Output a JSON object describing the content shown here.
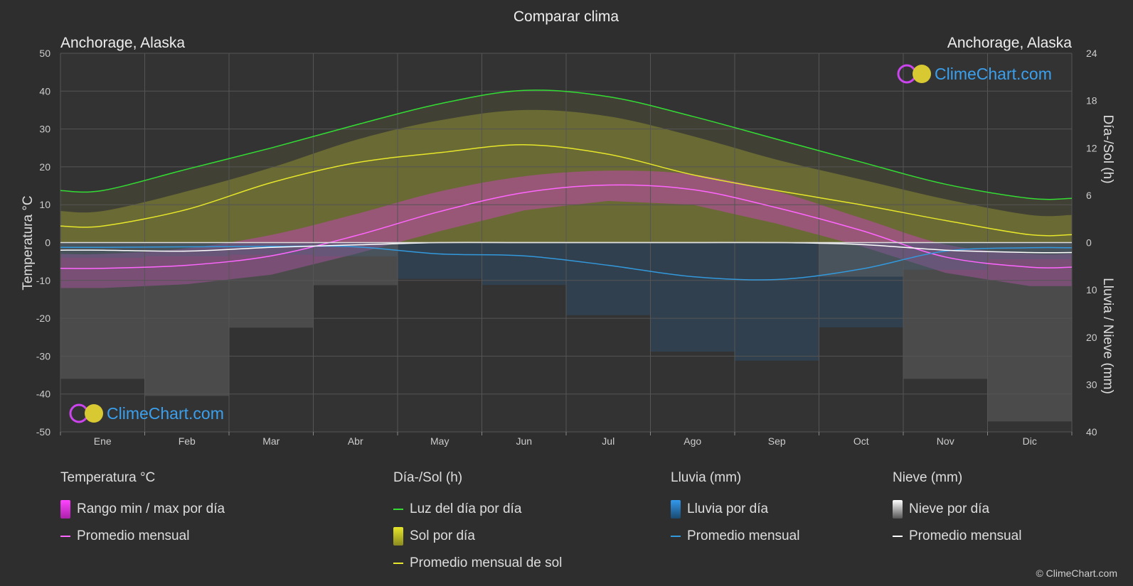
{
  "chart_data": {
    "type": "line",
    "title": "Comparar clima",
    "location_left": "Anchorage, Alaska",
    "location_right": "Anchorage, Alaska",
    "ylabel_left": "Temperatura °C",
    "ylabel_right_top": "Día-/Sol (h)",
    "ylabel_right_bottom": "Lluvia / Nieve (mm)",
    "y_left_ticks": [
      "50",
      "40",
      "30",
      "20",
      "10",
      "0",
      "-10",
      "-20",
      "-30",
      "-40",
      "-50"
    ],
    "y_right_top_ticks": [
      "24",
      "18",
      "12",
      "6",
      "0"
    ],
    "y_right_bottom_ticks": [
      "10",
      "20",
      "30",
      "40"
    ],
    "ylim_left": [
      -50,
      50
    ],
    "ylim_right_top_h": [
      0,
      24
    ],
    "ylim_right_bottom_mm": [
      0,
      40
    ],
    "grid": true,
    "categories": [
      "Ene",
      "Feb",
      "Mar",
      "Abr",
      "May",
      "Jun",
      "Jul",
      "Ago",
      "Sep",
      "Oct",
      "Nov",
      "Dic"
    ],
    "series": [
      {
        "name": "Luz del día por día",
        "unit": "h",
        "color": "#33dd33",
        "values": [
          6.6,
          9.3,
          12.0,
          14.9,
          17.6,
          19.3,
          18.5,
          16.0,
          13.1,
          10.2,
          7.4,
          5.6
        ]
      },
      {
        "name": "Sol por día",
        "unit": "h",
        "color": "#c8c832",
        "values": [
          4.0,
          6.5,
          9.5,
          13.0,
          15.5,
          16.8,
          16.0,
          13.5,
          10.5,
          8.0,
          5.5,
          3.5
        ]
      },
      {
        "name": "Promedio mensual de sol",
        "unit": "h",
        "color": "#e6e62a",
        "values": [
          2.1,
          4.2,
          7.6,
          10.1,
          11.4,
          12.4,
          11.2,
          8.6,
          6.6,
          4.8,
          2.8,
          1.0
        ]
      },
      {
        "name": "Temperatura promedio mensual",
        "unit": "°C",
        "color": "#ff66ff",
        "values": [
          -6.8,
          -6.0,
          -3.5,
          1.8,
          8.2,
          13.2,
          15.2,
          14.0,
          9.2,
          3.2,
          -3.8,
          -6.5
        ]
      },
      {
        "name": "Rango máx por día",
        "unit": "°C",
        "values": [
          -3.0,
          -1.5,
          2.0,
          7.5,
          13.5,
          17.5,
          19.0,
          18.0,
          13.5,
          6.5,
          -0.5,
          -3.0
        ]
      },
      {
        "name": "Rango min por día",
        "unit": "°C",
        "values": [
          -12.0,
          -11.0,
          -8.5,
          -3.0,
          3.0,
          8.5,
          11.0,
          10.0,
          5.0,
          -1.0,
          -8.0,
          -11.5
        ]
      },
      {
        "name": "Lluvia promedio mensual",
        "unit": "mm",
        "color": "#3399dd",
        "values": [
          1.0,
          0.9,
          0.8,
          0.9,
          2.4,
          2.8,
          4.8,
          7.2,
          7.8,
          5.6,
          1.8,
          1.1
        ]
      },
      {
        "name": "Nieve promedio mensual",
        "unit": "mm",
        "color": "#ffffff",
        "values": [
          1.6,
          1.8,
          1.0,
          0.5,
          0.0,
          0.0,
          0.0,
          0.0,
          0.0,
          0.4,
          1.6,
          2.1
        ]
      }
    ]
  },
  "legend": {
    "temp": {
      "title": "Temperatura °C",
      "range_label": "Rango min / max por día",
      "avg_label": "Promedio mensual"
    },
    "sun": {
      "title": "Día-/Sol (h)",
      "daylight_label": "Luz del día por día",
      "sun_label": "Sol por día",
      "sun_avg_label": "Promedio mensual de sol"
    },
    "rain": {
      "title": "Lluvia (mm)",
      "day_label": "Lluvia por día",
      "avg_label": "Promedio mensual"
    },
    "snow": {
      "title": "Nieve (mm)",
      "day_label": "Nieve por día",
      "avg_label": "Promedio mensual"
    }
  },
  "brand": {
    "name": "ClimeChart.com",
    "copyright": "© ClimeChart.com"
  },
  "colors": {
    "background": "#2e2e2e",
    "daylight": "#33dd33",
    "sun_band": "#b4b432",
    "sun_avg": "#e6e62a",
    "temp_range": "#dd33dd",
    "temp_avg": "#ff66ff",
    "rain": "#2a7ab8",
    "rain_avg": "#3399dd",
    "snow": "#aaaaaa",
    "snow_avg": "#ffffff",
    "brand": "#3aa0ee"
  }
}
